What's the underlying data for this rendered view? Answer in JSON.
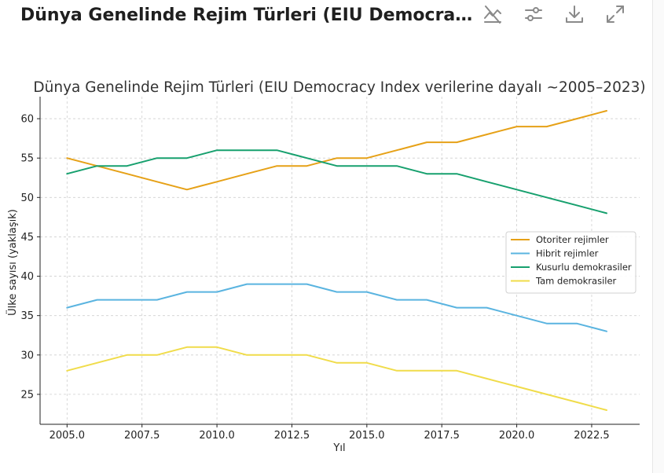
{
  "header": {
    "title": "Dünya Genelinde Rejim Türleri (EIU Democracy Index verilerine dayalı ~2005–2023)"
  },
  "toolbar": {
    "buttons": [
      {
        "name": "interactive-toggle-button",
        "icon": "chart-off-icon"
      },
      {
        "name": "settings-button",
        "icon": "sliders-icon"
      },
      {
        "name": "download-button",
        "icon": "download-icon"
      },
      {
        "name": "expand-button",
        "icon": "expand-icon"
      }
    ],
    "icon_color": "#8a8a8a"
  },
  "chart_data": {
    "type": "line",
    "title": "Dünya Genelinde Rejim Türleri (EIU Democracy Index verilerine dayalı ~2005–2023)",
    "xlabel": "Yıl",
    "ylabel": "Ülke sayısı (yaklaşık)",
    "xlim": [
      2004.1,
      2024.1
    ],
    "ylim": [
      21.2,
      62.8
    ],
    "x_ticks": [
      2005,
      2007.5,
      2010,
      2012.5,
      2015,
      2017.5,
      2020,
      2022.5
    ],
    "x_tick_labels": [
      "2005.0",
      "2007.5",
      "2010.0",
      "2012.5",
      "2015.0",
      "2017.5",
      "2020.0",
      "2022.5"
    ],
    "y_ticks": [
      25,
      30,
      35,
      40,
      45,
      50,
      55,
      60
    ],
    "y_tick_labels": [
      "25",
      "30",
      "35",
      "40",
      "45",
      "50",
      "55",
      "60"
    ],
    "grid": true,
    "legend_position": "center-right",
    "x": [
      2005,
      2006,
      2007,
      2008,
      2009,
      2010,
      2011,
      2012,
      2013,
      2014,
      2015,
      2016,
      2017,
      2018,
      2019,
      2020,
      2021,
      2022,
      2023
    ],
    "series": [
      {
        "name": "Otoriter rejimler",
        "color": "#e6a117",
        "values": [
          55,
          54,
          53,
          52,
          51,
          52,
          53,
          54,
          54,
          55,
          55,
          56,
          57,
          57,
          58,
          59,
          59,
          60,
          61
        ]
      },
      {
        "name": "Hibrit rejimler",
        "color": "#5ab4e0",
        "values": [
          36,
          37,
          37,
          37,
          38,
          38,
          39,
          39,
          39,
          38,
          38,
          37,
          37,
          36,
          36,
          35,
          34,
          34,
          33
        ]
      },
      {
        "name": "Kusurlu demokrasiler",
        "color": "#17a06e",
        "values": [
          53,
          54,
          54,
          55,
          55,
          56,
          56,
          56,
          55,
          54,
          54,
          54,
          53,
          53,
          52,
          51,
          50,
          49,
          48
        ]
      },
      {
        "name": "Tam demokrasiler",
        "color": "#f0dc4a",
        "values": [
          28,
          29,
          30,
          30,
          31,
          31,
          30,
          30,
          30,
          29,
          29,
          28,
          28,
          28,
          27,
          26,
          25,
          24,
          23
        ]
      }
    ]
  }
}
